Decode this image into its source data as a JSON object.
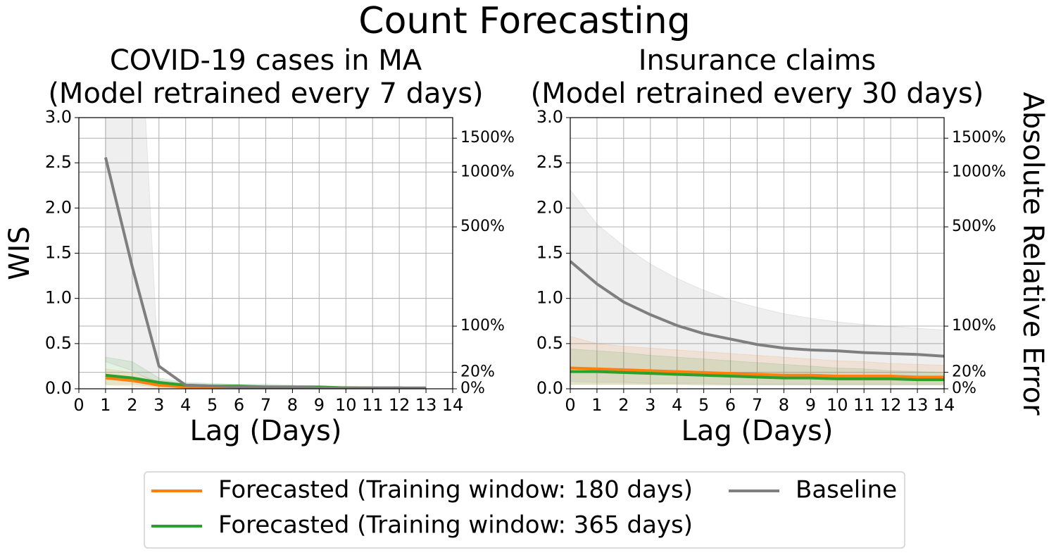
{
  "title": "Count Forecasting",
  "chart_data": [
    {
      "type": "line",
      "title": [
        "COVID-19 cases in MA",
        "(Model retrained every 7 days)"
      ],
      "x_label": "Lag (Days)",
      "y_label": "WIS",
      "x": [
        1,
        2,
        3,
        4,
        5,
        6,
        7,
        8,
        9,
        10,
        11,
        12,
        13
      ],
      "series": [
        {
          "name": "Forecasted (Training window: 180 days)",
          "color": "#ff7f0e",
          "values": [
            0.12,
            0.09,
            0.04,
            0.02,
            0.02,
            0.02,
            0.01,
            0.01,
            0.01,
            0.01,
            0.01,
            0.0,
            0.0
          ],
          "upper": [
            0.22,
            0.18,
            0.08,
            0.05,
            0.04,
            0.04,
            0.03,
            0.03,
            0.02,
            0.02,
            0.02,
            0.01,
            0.01
          ],
          "lower": [
            0.04,
            0.03,
            0.01,
            0.01,
            0.0,
            0.0,
            0.0,
            0.0,
            0.0,
            0.0,
            0.0,
            0.0,
            0.0
          ]
        },
        {
          "name": "Forecasted (Training window: 365 days)",
          "color": "#2ca02c",
          "values": [
            0.15,
            0.12,
            0.07,
            0.04,
            0.03,
            0.03,
            0.02,
            0.02,
            0.02,
            0.01,
            0.01,
            0.01,
            0.0
          ],
          "upper": [
            0.35,
            0.3,
            0.12,
            0.07,
            0.06,
            0.05,
            0.05,
            0.04,
            0.03,
            0.03,
            0.02,
            0.02,
            0.01
          ],
          "lower": [
            0.05,
            0.05,
            0.02,
            0.01,
            0.01,
            0.01,
            0.0,
            0.0,
            0.0,
            0.0,
            0.0,
            0.0,
            0.0
          ]
        },
        {
          "name": "Baseline",
          "color": "#7f7f7f",
          "values": [
            2.56,
            1.35,
            0.25,
            0.04,
            0.03,
            0.02,
            0.02,
            0.02,
            0.01,
            0.01,
            0.01,
            0.01,
            0.01
          ],
          "upper": [
            6.0,
            5.9,
            0.1,
            0.06,
            0.05,
            0.04,
            0.04,
            0.03,
            0.03,
            0.02,
            0.02,
            0.02,
            0.02
          ],
          "lower": [
            0.3,
            0.2,
            0.05,
            0.01,
            0.01,
            0.0,
            0.0,
            0.0,
            0.0,
            0.0,
            0.0,
            0.0,
            0.0
          ]
        }
      ],
      "xlim": [
        0,
        14
      ],
      "xticks": [
        0,
        1,
        2,
        3,
        4,
        5,
        6,
        7,
        8,
        9,
        10,
        11,
        12,
        13,
        14
      ],
      "ylim": [
        0,
        3
      ],
      "yticks": [
        {
          "value": 0,
          "label": "0.0"
        },
        {
          "value": 0.5,
          "label": "0.5"
        },
        {
          "value": 1,
          "label": "1.0"
        },
        {
          "value": 1.5,
          "label": "1.5"
        },
        {
          "value": 2,
          "label": "2.0"
        },
        {
          "value": 2.5,
          "label": "2.5"
        },
        {
          "value": 3,
          "label": "3.0"
        }
      ],
      "y2scale": "log1p",
      "y2lim": [
        0,
        19.09
      ],
      "y2ticks": [
        {
          "value": 0,
          "label": "0%"
        },
        {
          "value": 0.2,
          "label": "20%"
        },
        {
          "value": 1,
          "label": "100%"
        },
        {
          "value": 5,
          "label": "500%"
        },
        {
          "value": 10,
          "label": "1000%"
        },
        {
          "value": 15,
          "label": "1500%"
        }
      ],
      "grid": true
    },
    {
      "type": "line",
      "title": [
        "Insurance claims",
        "(Model retrained every 30 days)"
      ],
      "x_label": "Lag (Days)",
      "y2_label": "Absolute Relative Error",
      "x": [
        0,
        1,
        2,
        3,
        4,
        5,
        6,
        7,
        8,
        9,
        10,
        11,
        12,
        13,
        14
      ],
      "series": [
        {
          "name": "Forecasted (Training window: 180 days)",
          "color": "#ff7f0e",
          "values": [
            0.23,
            0.22,
            0.21,
            0.2,
            0.19,
            0.18,
            0.17,
            0.16,
            0.15,
            0.15,
            0.14,
            0.14,
            0.14,
            0.13,
            0.13
          ],
          "upper": [
            0.58,
            0.5,
            0.47,
            0.45,
            0.43,
            0.41,
            0.39,
            0.37,
            0.35,
            0.33,
            0.31,
            0.3,
            0.28,
            0.27,
            0.26
          ],
          "lower": [
            0.05,
            0.05,
            0.05,
            0.05,
            0.05,
            0.05,
            0.05,
            0.05,
            0.05,
            0.05,
            0.05,
            0.05,
            0.05,
            0.05,
            0.05
          ]
        },
        {
          "name": "Forecasted (Training window: 365 days)",
          "color": "#2ca02c",
          "values": [
            0.19,
            0.19,
            0.18,
            0.17,
            0.16,
            0.15,
            0.14,
            0.13,
            0.12,
            0.12,
            0.11,
            0.11,
            0.11,
            0.1,
            0.1
          ],
          "upper": [
            0.44,
            0.42,
            0.4,
            0.37,
            0.35,
            0.33,
            0.31,
            0.29,
            0.27,
            0.25,
            0.23,
            0.22,
            0.2,
            0.19,
            0.18
          ],
          "lower": [
            0.05,
            0.05,
            0.05,
            0.05,
            0.05,
            0.04,
            0.04,
            0.04,
            0.04,
            0.04,
            0.04,
            0.04,
            0.04,
            0.04,
            0.04
          ]
        },
        {
          "name": "Baseline",
          "color": "#7f7f7f",
          "values": [
            1.41,
            1.16,
            0.96,
            0.82,
            0.7,
            0.61,
            0.55,
            0.49,
            0.45,
            0.43,
            0.42,
            0.4,
            0.39,
            0.38,
            0.36
          ],
          "upper": [
            2.2,
            1.82,
            1.58,
            1.38,
            1.22,
            1.09,
            0.98,
            0.9,
            0.83,
            0.78,
            0.74,
            0.71,
            0.69,
            0.67,
            0.65
          ],
          "lower": [
            0.08,
            0.07,
            0.07,
            0.06,
            0.06,
            0.06,
            0.05,
            0.05,
            0.05,
            0.05,
            0.05,
            0.05,
            0.05,
            0.05,
            0.05
          ]
        }
      ],
      "xlim": [
        0,
        14
      ],
      "xticks": [
        0,
        1,
        2,
        3,
        4,
        5,
        6,
        7,
        8,
        9,
        10,
        11,
        12,
        13,
        14
      ],
      "ylim": [
        0,
        3
      ],
      "yticks": [
        {
          "value": 0,
          "label": "0.0"
        },
        {
          "value": 0.5,
          "label": "0.5"
        },
        {
          "value": 1,
          "label": "1.0"
        },
        {
          "value": 1.5,
          "label": "1.5"
        },
        {
          "value": 2,
          "label": "2.0"
        },
        {
          "value": 2.5,
          "label": "2.5"
        },
        {
          "value": 3,
          "label": "3.0"
        }
      ],
      "y2scale": "log1p",
      "y2lim": [
        0,
        19.09
      ],
      "y2ticks": [
        {
          "value": 0,
          "label": "0%"
        },
        {
          "value": 0.2,
          "label": "20%"
        },
        {
          "value": 1,
          "label": "100%"
        },
        {
          "value": 5,
          "label": "500%"
        },
        {
          "value": 10,
          "label": "1000%"
        },
        {
          "value": 15,
          "label": "1500%"
        }
      ],
      "grid": true
    }
  ]
}
